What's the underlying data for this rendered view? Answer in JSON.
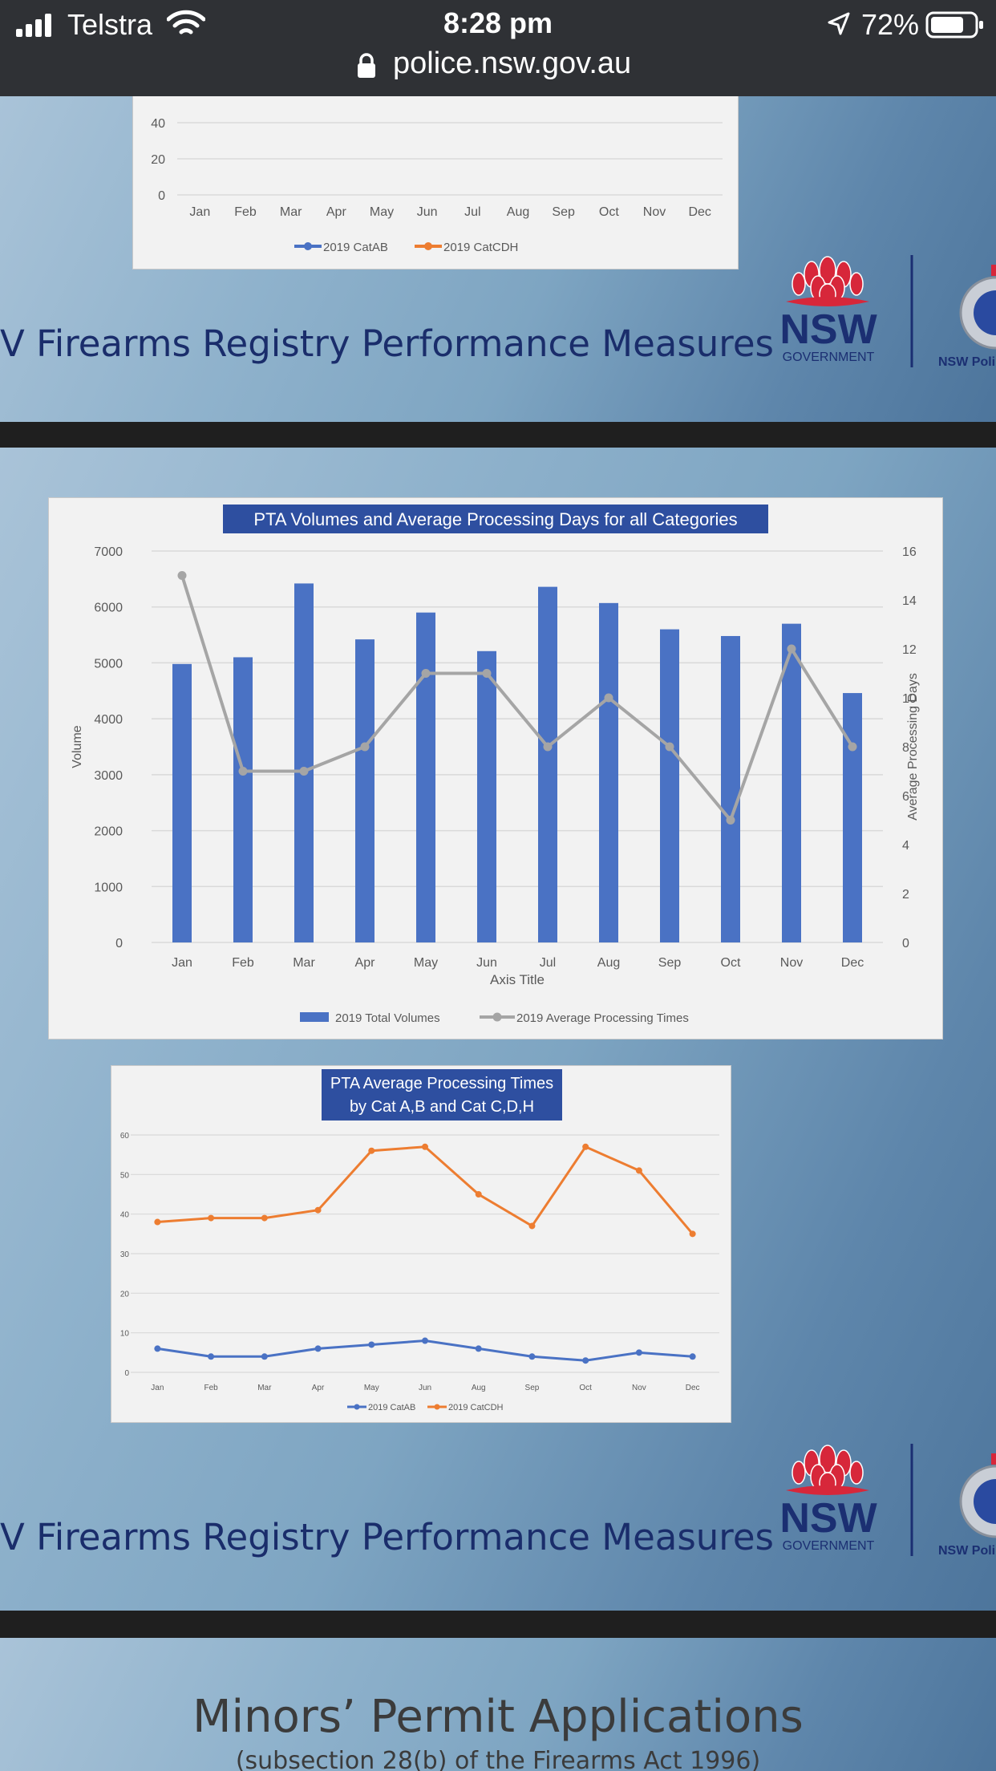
{
  "status_bar": {
    "carrier": "Telstra",
    "time": "8:28 pm",
    "battery": "72%",
    "url": "police.nsw.gov.au",
    "icons": [
      "signal-icon",
      "wifi-icon",
      "location-arrow-icon",
      "battery-icon",
      "lock-icon"
    ]
  },
  "slides": {
    "title_partial": "V Firearms Registry Performance Measures",
    "logo_nsw": "NSW",
    "logo_government": "GOVERNMENT",
    "logo_police": "NSW Poli",
    "minors_title": "Minors’ Permit Applications",
    "minors_subtitle": "(subsection 28(b) of the Firearms Act 1996)"
  },
  "colors": {
    "bar_blue": "#4a72c4",
    "line_grey": "#a5a5a5",
    "line_orange": "#ed7d31",
    "title_navy": "#1a2d6b",
    "chart_title_bg": "#2e4fa0",
    "waratah_red": "#d7273a"
  },
  "chart_data": [
    {
      "type": "line",
      "id": "top-partial-chart",
      "categories": [
        "Jan",
        "Feb",
        "Mar",
        "Apr",
        "May",
        "Jun",
        "Jul",
        "Aug",
        "Sep",
        "Oct",
        "Nov",
        "Dec"
      ],
      "y_ticks_visible": [
        0,
        20,
        40
      ],
      "series": [
        {
          "name": "2019 CatAB"
        },
        {
          "name": "2019 CatCDH"
        }
      ]
    },
    {
      "type": "bar",
      "id": "pta-volumes-chart",
      "title": "PTA Volumes and Average Processing Days for all Categories",
      "xlabel": "Axis Title",
      "ylabel": "Volume",
      "y2label": "Average Processing Days",
      "categories": [
        "Jan",
        "Feb",
        "Mar",
        "Apr",
        "May",
        "Jun",
        "Jul",
        "Aug",
        "Sep",
        "Oct",
        "Nov",
        "Dec"
      ],
      "ylim": [
        0,
        7000
      ],
      "y2lim": [
        0,
        16
      ],
      "y_ticks": [
        0,
        1000,
        2000,
        3000,
        4000,
        5000,
        6000,
        7000
      ],
      "y2_ticks": [
        0,
        2,
        4,
        6,
        8,
        10,
        12,
        14,
        16
      ],
      "grid": true,
      "legend": "bottom",
      "series": [
        {
          "name": "2019 Total Volumes",
          "type": "bar",
          "axis": "left",
          "values": [
            4980,
            5100,
            6420,
            5420,
            5900,
            5210,
            6360,
            6070,
            5600,
            5480,
            5700,
            4460
          ]
        },
        {
          "name": "2019 Average Processing Times",
          "type": "line",
          "axis": "right",
          "values": [
            15,
            7,
            7,
            8,
            11,
            11,
            8,
            10,
            8,
            5,
            12,
            8
          ]
        }
      ]
    },
    {
      "type": "line",
      "id": "pta-avg-times-chart",
      "title": "PTA Average Processing Times\nby Cat A,B and Cat C,D,H",
      "title_lines": [
        "PTA Average Processing Times",
        "by Cat A,B and Cat C,D,H"
      ],
      "categories": [
        "Jan",
        "Feb",
        "Mar",
        "Apr",
        "May",
        "Jun",
        "Aug",
        "Sep",
        "Oct",
        "Nov",
        "Dec"
      ],
      "ylim": [
        0,
        60
      ],
      "y_ticks": [
        0,
        10,
        20,
        30,
        40,
        50,
        60
      ],
      "grid": true,
      "legend": "bottom",
      "series": [
        {
          "name": "2019 CatAB",
          "values": [
            6,
            4,
            4,
            6,
            7,
            8,
            6,
            4,
            3,
            5,
            4
          ]
        },
        {
          "name": "2019 CatCDH",
          "values": [
            38,
            39,
            39,
            41,
            56,
            57,
            45,
            37,
            57,
            51,
            35
          ]
        }
      ]
    }
  ]
}
